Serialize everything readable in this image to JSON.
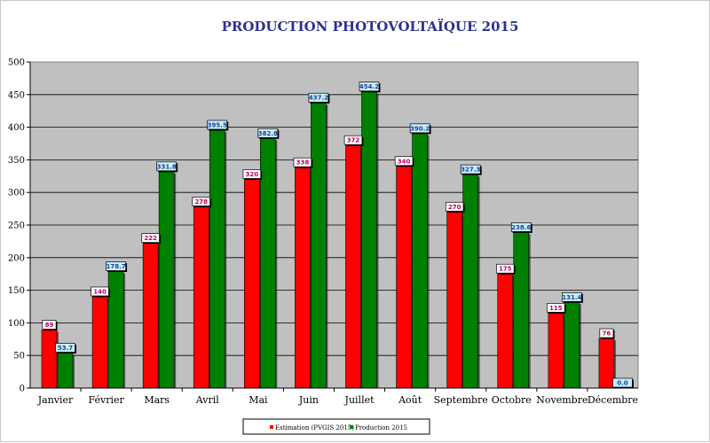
{
  "chart_data": {
    "type": "bar",
    "title": "PRODUCTION PHOTOVOLTAÏQUE 2015",
    "xlabel": "",
    "ylabel": "",
    "ylim": [
      0,
      500
    ],
    "yticks": [
      0,
      50,
      100,
      150,
      200,
      250,
      300,
      350,
      400,
      450,
      500
    ],
    "grid": true,
    "legend_position": "bottom",
    "categories": [
      "Janvier",
      "Février",
      "Mars",
      "Avril",
      "Mai",
      "Juin",
      "Juillet",
      "Août",
      "Septembre",
      "Octobre",
      "Novembre",
      "Décembre"
    ],
    "series": [
      {
        "name": "Estimation (PVGIS 2015)",
        "color": "#ff0000",
        "label_color": "#c00060",
        "values": [
          89,
          140,
          222,
          278,
          320,
          338,
          372,
          340,
          270,
          175,
          115,
          76
        ],
        "labels": [
          "89",
          "140",
          "222",
          "278",
          "320",
          "338",
          "372",
          "340",
          "270",
          "175",
          "115",
          "76"
        ]
      },
      {
        "name": "Production 2015",
        "color": "#008000",
        "label_color": "#1f3f8f",
        "values": [
          53.7,
          178.7,
          331.8,
          395.5,
          382.8,
          437.2,
          454.2,
          390.2,
          327.3,
          238.6,
          131.4,
          0.0
        ],
        "labels": [
          "53.7",
          "178.7",
          "331.8",
          "395.5",
          "382.8",
          "437.2",
          "454.2",
          "390.2",
          "327.3",
          "238.6",
          "131.4",
          "0.0"
        ]
      }
    ]
  }
}
